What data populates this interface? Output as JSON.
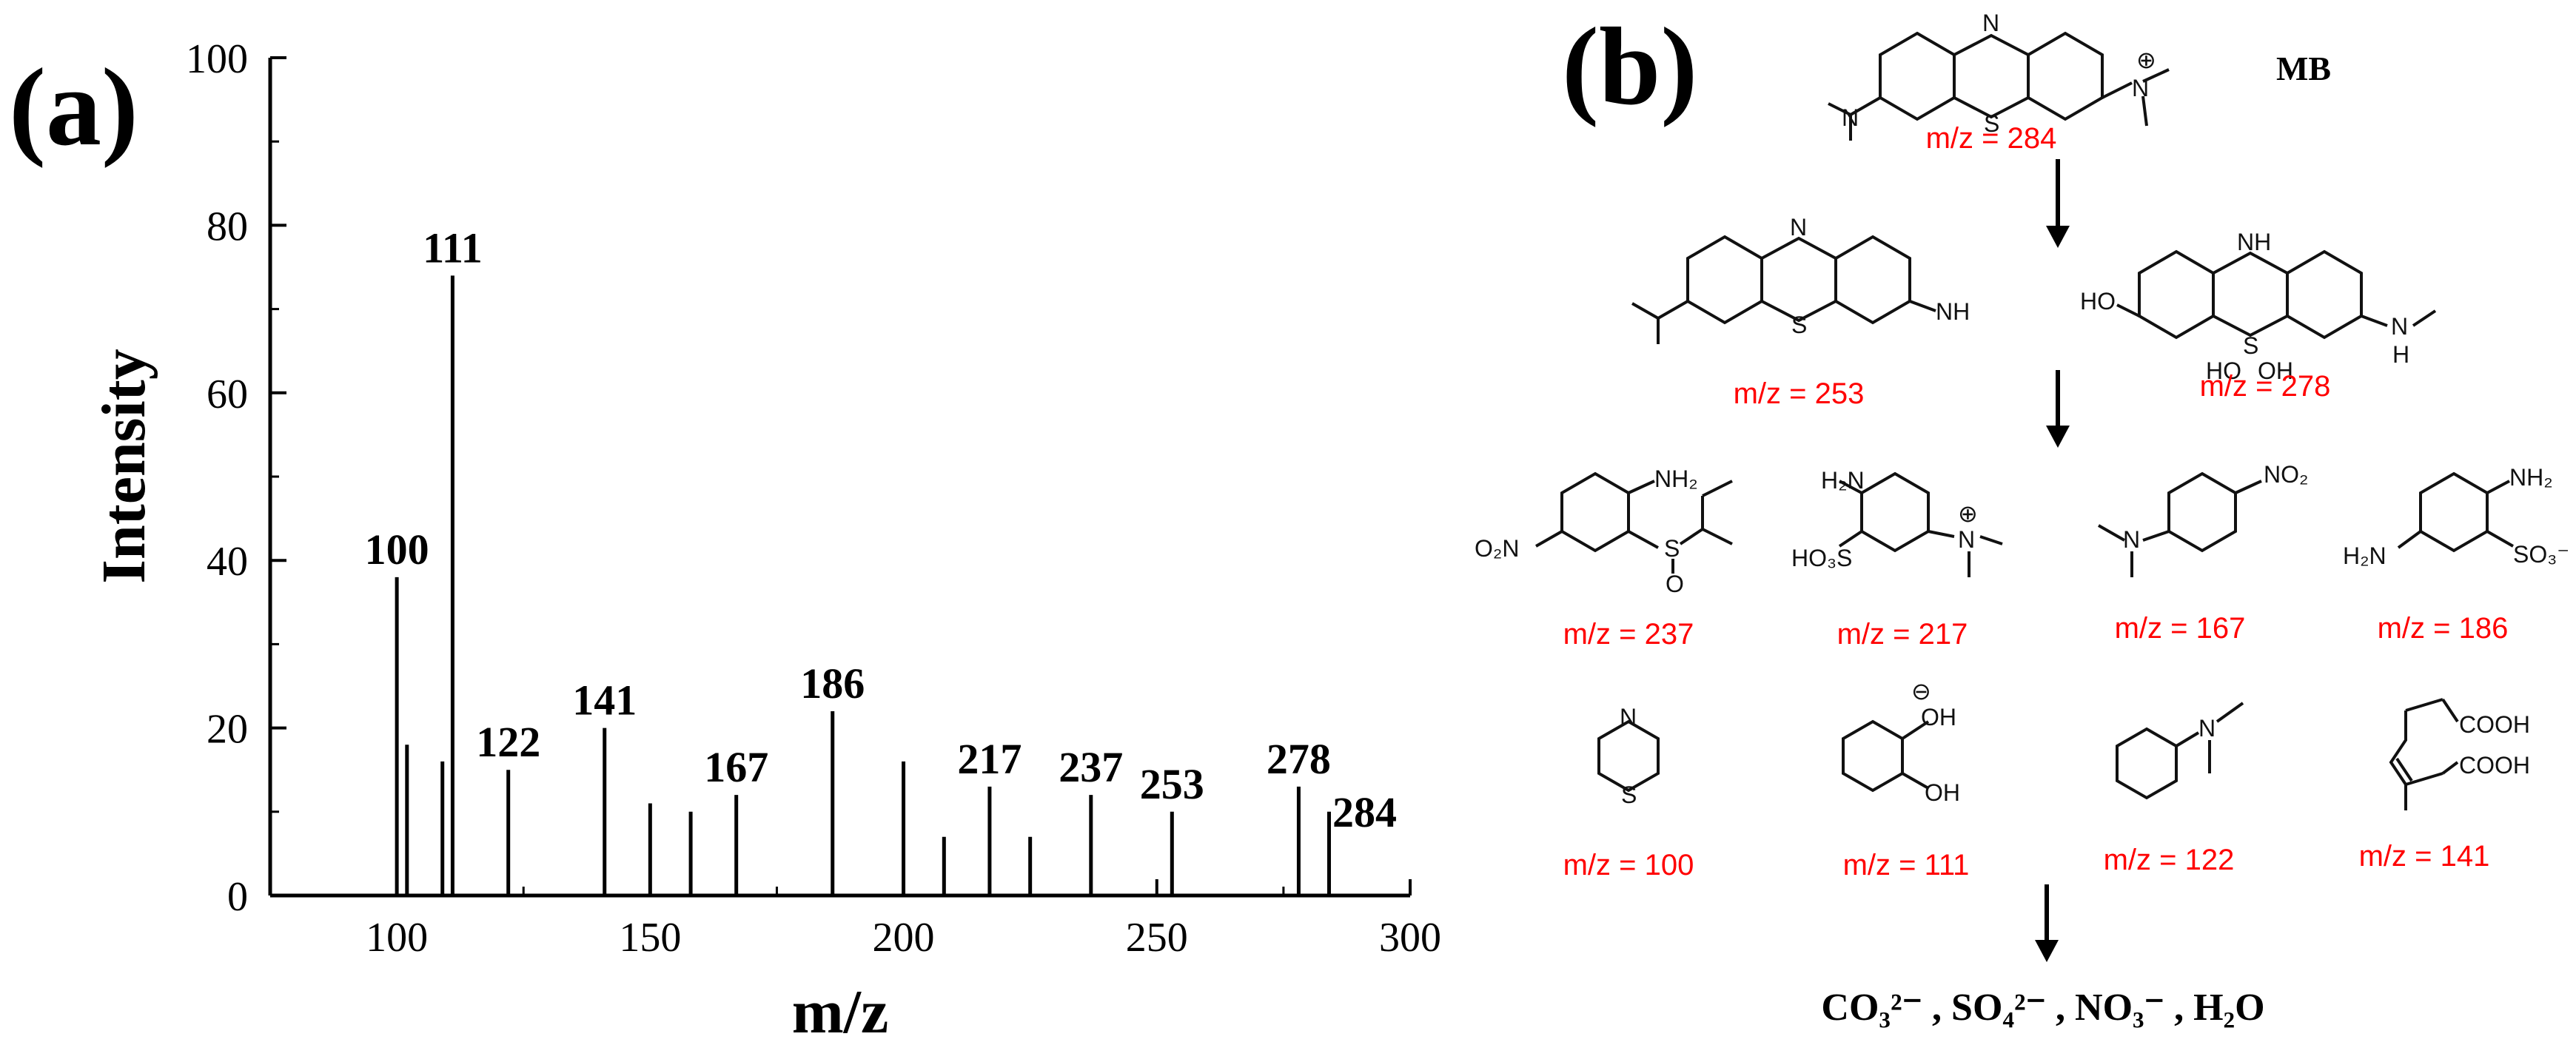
{
  "panel_a": {
    "label": "(a)",
    "chart_data": {
      "type": "bar",
      "xlabel": "m/z",
      "ylabel": "Intensity",
      "xlim": [
        75,
        300
      ],
      "ylim": [
        0,
        100
      ],
      "xticks": [
        "100",
        "150",
        "200",
        "250",
        "300"
      ],
      "yticks": [
        "0",
        "20",
        "40",
        "60",
        "80",
        "100"
      ],
      "peaks": [
        {
          "mz": 100,
          "intensity": 38,
          "label": "100"
        },
        {
          "mz": 102,
          "intensity": 18,
          "label": ""
        },
        {
          "mz": 109,
          "intensity": 16,
          "label": ""
        },
        {
          "mz": 111,
          "intensity": 74,
          "label": "111"
        },
        {
          "mz": 122,
          "intensity": 15,
          "label": "122"
        },
        {
          "mz": 141,
          "intensity": 20,
          "label": "141"
        },
        {
          "mz": 150,
          "intensity": 11,
          "label": ""
        },
        {
          "mz": 158,
          "intensity": 10,
          "label": ""
        },
        {
          "mz": 167,
          "intensity": 12,
          "label": "167"
        },
        {
          "mz": 186,
          "intensity": 22,
          "label": "186"
        },
        {
          "mz": 200,
          "intensity": 16,
          "label": ""
        },
        {
          "mz": 208,
          "intensity": 7,
          "label": ""
        },
        {
          "mz": 217,
          "intensity": 13,
          "label": "217"
        },
        {
          "mz": 225,
          "intensity": 7,
          "label": ""
        },
        {
          "mz": 237,
          "intensity": 12,
          "label": "237"
        },
        {
          "mz": 253,
          "intensity": 10,
          "label": "253"
        },
        {
          "mz": 278,
          "intensity": 13,
          "label": "278"
        },
        {
          "mz": 284,
          "intensity": 10,
          "label": "284"
        }
      ]
    }
  },
  "panel_b": {
    "label": "(b)",
    "mb_name": "MB",
    "mz_labels": {
      "mb": "m/z = 284",
      "s253": "m/z = 253",
      "s278": "m/z = 278",
      "s237": "m/z = 237",
      "s217": "m/z = 217",
      "s167": "m/z = 167",
      "s186": "m/z = 186",
      "s100": "m/z = 100",
      "s111": "m/z = 111",
      "s122": "m/z = 122",
      "s141": "m/z = 141"
    },
    "atoms": {
      "N": "N",
      "S": "S",
      "plus": "⊕",
      "minus": "⊖",
      "NH": "NH",
      "H": "H",
      "HO": "HO",
      "OH": "OH",
      "O": "O",
      "NH2": "NH₂",
      "H2N": "H₂N",
      "NO2": "NO₂",
      "O2N": "O₂N",
      "HO3S": "HO₃S",
      "SO3": "SO₃⁻",
      "COOH": "COOH"
    },
    "final_products": "CO₃²⁻ , SO₄²⁻ , NO₃⁻ , H₂O"
  }
}
